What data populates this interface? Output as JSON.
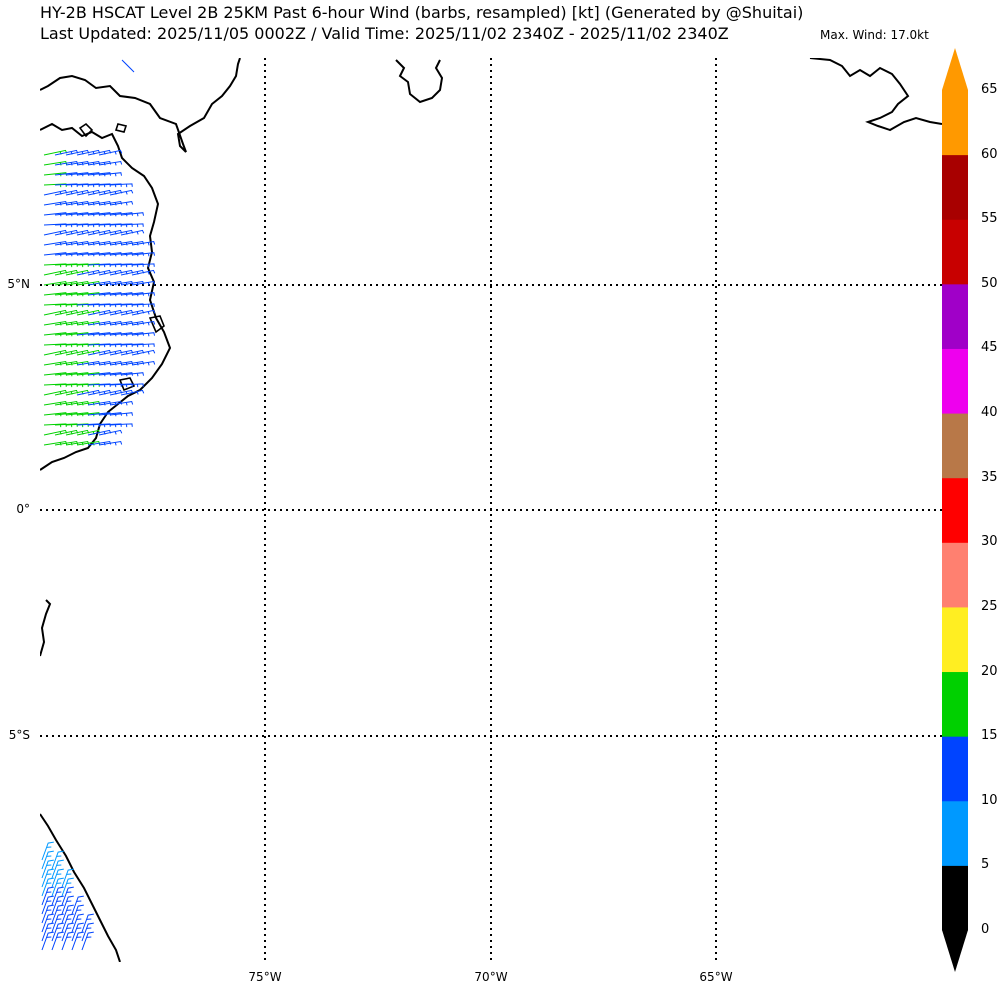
{
  "header": {
    "title_line1": "HY-2B HSCAT Level 2B 25KM Past 6-hour Wind (barbs, resampled) [kt] (Generated by @Shuitai)",
    "title_line2": "Last Updated: 2025/11/05 0002Z / Valid Time: 2025/11/02 2340Z - 2025/11/02 2340Z",
    "max_wind": "Max. Wind: 17.0kt"
  },
  "map": {
    "lat_labels": [
      "5°N",
      "0°",
      "5°S"
    ],
    "lon_labels": [
      "75°W",
      "70°W",
      "65°W"
    ],
    "lat_values": [
      5,
      0,
      -5
    ],
    "lon_values": [
      -75,
      -70,
      -65
    ],
    "coastline_color": "#000000",
    "gridline_color": "#000000"
  },
  "colorbar": {
    "unit": "kt",
    "ticks": [
      "0",
      "5",
      "10",
      "15",
      "20",
      "25",
      "30",
      "35",
      "40",
      "45",
      "50",
      "55",
      "60",
      "65"
    ],
    "levels": [
      {
        "from": 0,
        "to": 5,
        "color": "#000000"
      },
      {
        "from": 5,
        "to": 10,
        "color": "#0099ff"
      },
      {
        "from": 10,
        "to": 15,
        "color": "#0044ff"
      },
      {
        "from": 15,
        "to": 20,
        "color": "#00d000"
      },
      {
        "from": 20,
        "to": 25,
        "color": "#ffee22"
      },
      {
        "from": 25,
        "to": 30,
        "color": "#ff8070"
      },
      {
        "from": 30,
        "to": 35,
        "color": "#ff0000"
      },
      {
        "from": 35,
        "to": 40,
        "color": "#b87848"
      },
      {
        "from": 40,
        "to": 45,
        "color": "#ee00ee"
      },
      {
        "from": 45,
        "to": 50,
        "color": "#a000c8"
      },
      {
        "from": 50,
        "to": 55,
        "color": "#c80000"
      },
      {
        "from": 55,
        "to": 60,
        "color": "#a80000"
      },
      {
        "from": 60,
        "to": 65,
        "color": "#ff9900"
      }
    ],
    "under_color": "#000000",
    "over_color": "#ff9900"
  },
  "barb_colors": {
    "light_blue": "#0099ff",
    "blue": "#0044ff",
    "green": "#00d000"
  }
}
